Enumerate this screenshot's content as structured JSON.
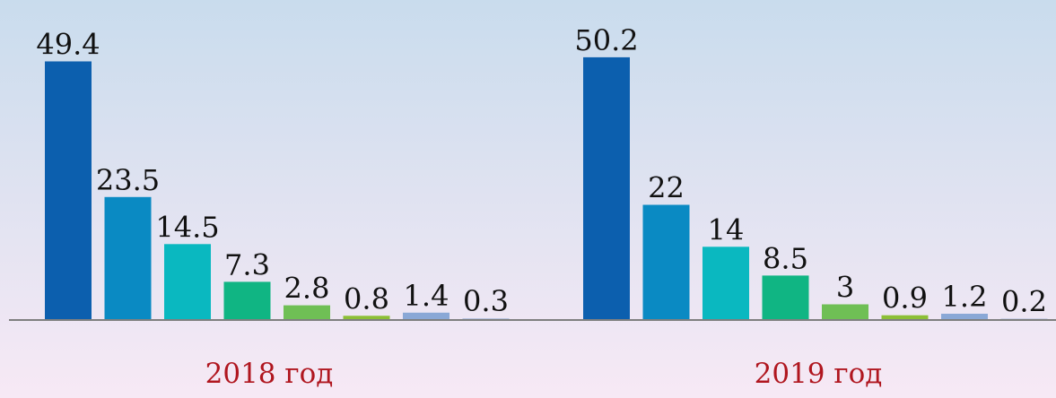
{
  "chart_data": {
    "type": "bar",
    "title": "",
    "xlabel": "",
    "ylabel": "",
    "ylim": [
      0,
      56
    ],
    "grid": false,
    "legend": "none",
    "background": {
      "top": "#c9dced",
      "bottom": "#f7e9f5"
    },
    "axis_color": "#7f7f7f",
    "group_label_color": "#b0161f",
    "value_label_color": "#111111",
    "colors": [
      "#0c5fae",
      "#0a8ac3",
      "#0ab8c0",
      "#10b583",
      "#6fbf55",
      "#8cbf36",
      "#8aa8d6",
      "#a9b9da"
    ],
    "groups": [
      {
        "label": "2018 год",
        "values": [
          49.4,
          23.5,
          14.5,
          7.3,
          2.8,
          0.8,
          1.4,
          0.3
        ],
        "value_labels": [
          "49.4",
          "23.5",
          "14.5",
          "7.3",
          "2.8",
          "0.8",
          "1.4",
          "0.3"
        ]
      },
      {
        "label": "2019 год",
        "values": [
          50.2,
          22,
          14,
          8.5,
          3,
          0.9,
          1.2,
          0.2
        ],
        "value_labels": [
          "50.2",
          "22",
          "14",
          "8.5",
          "3",
          "0.9",
          "1.2",
          "0.2"
        ]
      }
    ]
  }
}
